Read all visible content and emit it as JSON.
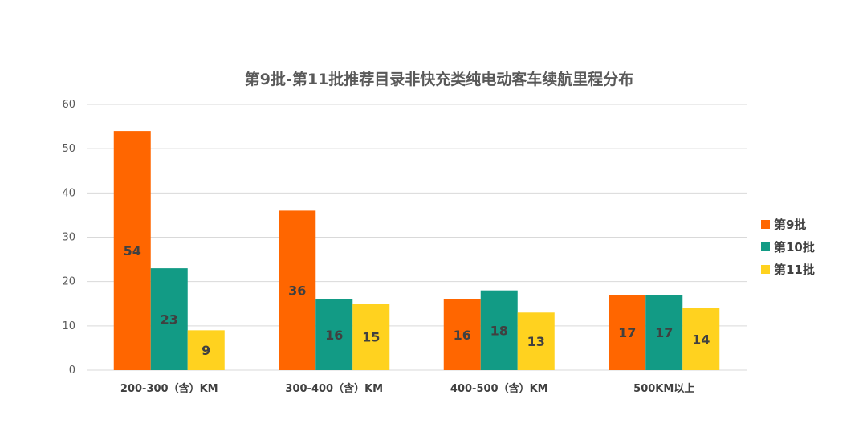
{
  "chart_data": {
    "type": "bar",
    "title": "第9批-第11批推荐目录非快充类纯电动客车续航里程分布",
    "categories": [
      "200-300（含）KM",
      "300-400（含）KM",
      "400-500（含）KM",
      "500KM以上"
    ],
    "series": [
      {
        "name": "第9批",
        "values": [
          54,
          36,
          16,
          17
        ],
        "color": "#ff6600"
      },
      {
        "name": "第10批",
        "values": [
          23,
          16,
          18,
          17
        ],
        "color": "#129b85"
      },
      {
        "name": "第11批",
        "values": [
          9,
          15,
          13,
          14
        ],
        "color": "#ffd21f"
      }
    ],
    "yticks": [
      0,
      10,
      20,
      30,
      40,
      50,
      60
    ],
    "ylim": [
      0,
      60
    ],
    "grid": true,
    "legend": "right"
  }
}
